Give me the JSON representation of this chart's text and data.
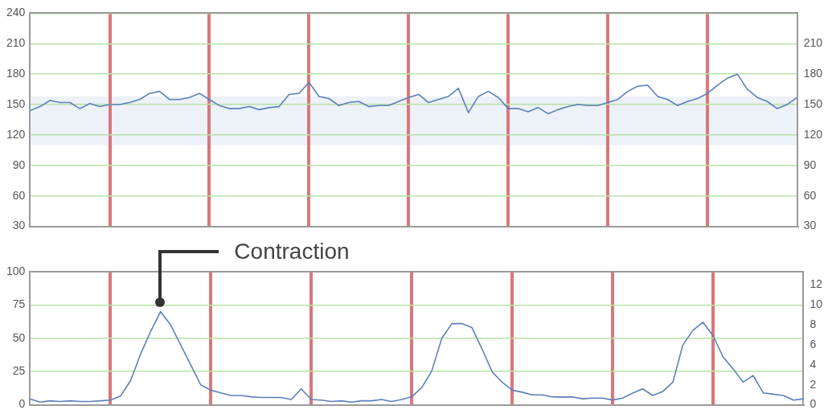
{
  "chart_data": [
    {
      "type": "line",
      "color": "#5b80ba",
      "categories": [
        null,
        null,
        null,
        null,
        null,
        null,
        null,
        null,
        null,
        null,
        null,
        null,
        null,
        null,
        null,
        null,
        null,
        null,
        null,
        null,
        null,
        null,
        null,
        null,
        null,
        null,
        null,
        null,
        null,
        null,
        null,
        null,
        null,
        null,
        null,
        null,
        null,
        null,
        null,
        null,
        null,
        null,
        null,
        null,
        null,
        null,
        null,
        null,
        null,
        null,
        null,
        null,
        null,
        null,
        null,
        null,
        null,
        null,
        null,
        null,
        null,
        null,
        null,
        null,
        null,
        null,
        null,
        null,
        null,
        null,
        null,
        null,
        null,
        null,
        null,
        null,
        null,
        null
      ],
      "values": [
        144,
        148,
        154,
        152,
        152,
        146,
        151,
        148,
        150,
        150,
        152,
        155,
        161,
        163,
        155,
        155,
        157,
        161,
        155,
        149,
        146,
        146,
        148,
        145,
        147,
        148,
        160,
        161,
        172,
        158,
        156,
        149,
        152,
        153,
        148,
        149,
        149,
        153,
        157,
        160,
        152,
        155,
        158,
        166,
        142,
        158,
        163,
        157,
        146,
        146,
        143,
        147,
        141,
        145,
        148,
        150,
        149,
        149,
        152,
        155,
        163,
        168,
        169,
        158,
        155,
        149,
        153,
        156,
        161,
        169,
        176,
        180,
        165,
        157,
        153,
        146,
        150,
        157
      ],
      "ylim": [
        30,
        240
      ],
      "yticks": [
        30,
        60,
        90,
        120,
        150,
        180,
        210,
        240
      ],
      "y2lim": [
        30,
        240
      ],
      "y2ticks": [
        30,
        60,
        90,
        120,
        150,
        180,
        210
      ],
      "bands": [
        {
          "axis": "y",
          "from": 110,
          "to": 158,
          "color": "#edf1f8"
        }
      ],
      "grid": true
    },
    {
      "type": "line",
      "color": "#5b80ba",
      "categories": [
        null,
        null,
        null,
        null,
        null,
        null,
        null,
        null,
        null,
        null,
        null,
        null,
        null,
        null,
        null,
        null,
        null,
        null,
        null,
        null,
        null,
        null,
        null,
        null,
        null,
        null,
        null,
        null,
        null,
        null,
        null,
        null,
        null,
        null,
        null,
        null,
        null,
        null,
        null,
        null,
        null,
        null,
        null,
        null,
        null,
        null,
        null,
        null,
        null,
        null,
        null,
        null,
        null,
        null,
        null,
        null,
        null,
        null,
        null,
        null,
        null,
        null,
        null,
        null,
        null,
        null,
        null,
        null,
        null,
        null,
        null,
        null,
        null,
        null,
        null,
        null,
        null,
        null
      ],
      "values": [
        4.5,
        2,
        3,
        2.5,
        3,
        2.5,
        2.5,
        3,
        3.5,
        6.5,
        18,
        38,
        55,
        70,
        60,
        45,
        30,
        15,
        11,
        9,
        7,
        7,
        6,
        5.5,
        5.5,
        5.5,
        4,
        12,
        4,
        3.5,
        2.5,
        3,
        2,
        3,
        3,
        4,
        2.5,
        4,
        6,
        13,
        25.5,
        50,
        61,
        61,
        58,
        42,
        25,
        17,
        11,
        9.5,
        7.5,
        7.5,
        6,
        5.7,
        6,
        4.5,
        5,
        5,
        3.6,
        5,
        8.8,
        12,
        7,
        10,
        17,
        45,
        56,
        62,
        52,
        36,
        27,
        17,
        22,
        9,
        8,
        7,
        3.5,
        4.5
      ],
      "ylim": [
        0,
        100
      ],
      "yticks": [
        0,
        25,
        50,
        75,
        100
      ],
      "y2lim": [
        0,
        13.3
      ],
      "y2ticks": [
        0,
        2,
        4,
        6,
        8,
        10,
        12
      ],
      "annotations": [
        "Contraction"
      ],
      "grid": true
    }
  ]
}
